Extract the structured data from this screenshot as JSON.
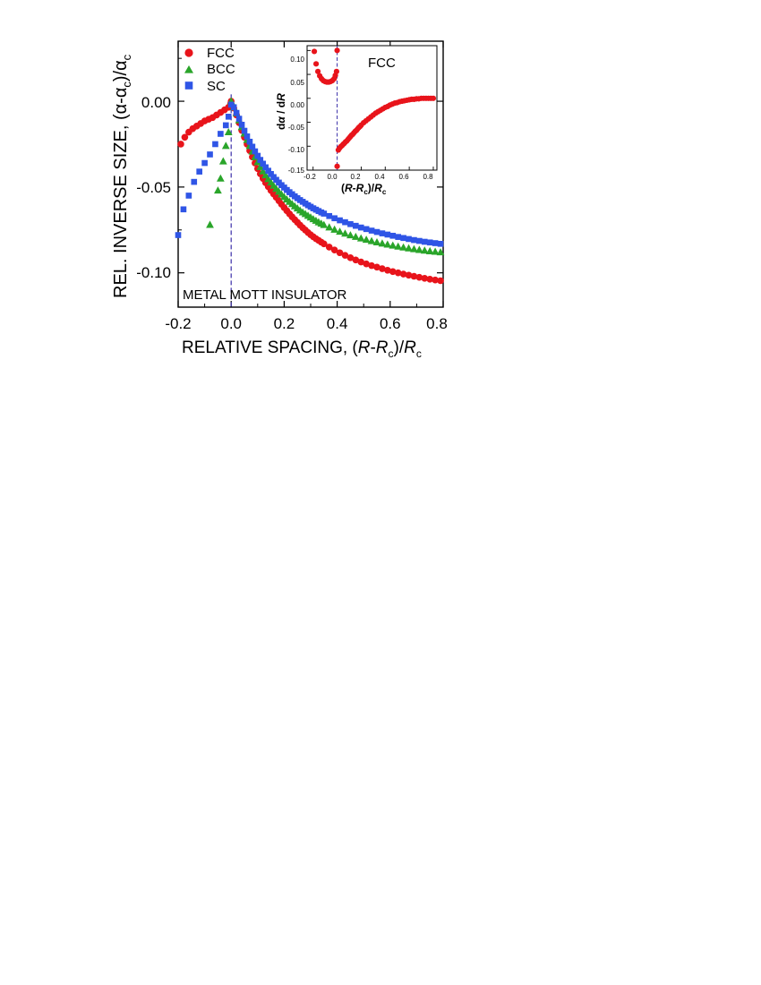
{
  "chart_data": [
    {
      "type": "scatter",
      "xlabel": "RELATIVE SPACING,  (R-R_c)/R_c",
      "ylabel": "REL. INVERSE SIZE,  (α-α_c)/α_c",
      "xlabel_parts": {
        "lead": "RELATIVE SPACING,  (",
        "var1": "R",
        "dash": "-",
        "var2": "R",
        "sub": "c",
        "mid": ")/",
        "var3": "R",
        "sub2": "c"
      },
      "ylabel_parts": {
        "lead": "REL. INVERSE SIZE,  (α-α",
        "sub": "c",
        "mid": ")/α",
        "sub2": "c"
      },
      "xlim": [
        -0.2,
        0.8
      ],
      "ylim": [
        -0.12,
        0.035
      ],
      "xticks": [
        "-0.2",
        "0.0",
        "0.2",
        "0.4",
        "0.6",
        "0.8"
      ],
      "yticks": [
        "0.00",
        "-0.05",
        "-0.10"
      ],
      "vline_x": 0.0,
      "annotation": "METAL  MOTT  INSULATOR",
      "legend": {
        "position": "top-left"
      },
      "colors": {
        "FCC": "#e8141b",
        "BCC": "#2aa52a",
        "SC": "#2f55e6",
        "vline": "#3b2fa8"
      },
      "series": [
        {
          "name": "FCC",
          "marker": "circle",
          "x": [
            -0.19,
            -0.175,
            -0.16,
            -0.145,
            -0.13,
            -0.115,
            -0.1,
            -0.085,
            -0.07,
            -0.055,
            -0.04,
            -0.025,
            -0.01,
            -0.002,
            0.0,
            0.01,
            0.02,
            0.03,
            0.04,
            0.05,
            0.06,
            0.07,
            0.08,
            0.09,
            0.1,
            0.11,
            0.12,
            0.13,
            0.14,
            0.15,
            0.16,
            0.17,
            0.18,
            0.19,
            0.2,
            0.21,
            0.22,
            0.23,
            0.24,
            0.25,
            0.26,
            0.27,
            0.28,
            0.29,
            0.3,
            0.31,
            0.32,
            0.33,
            0.34,
            0.35,
            0.37,
            0.39,
            0.41,
            0.43,
            0.45,
            0.47,
            0.49,
            0.51,
            0.53,
            0.55,
            0.57,
            0.59,
            0.61,
            0.63,
            0.65,
            0.67,
            0.69,
            0.71,
            0.73,
            0.75,
            0.77,
            0.79
          ],
          "y": [
            -0.025,
            -0.021,
            -0.018,
            -0.016,
            -0.0145,
            -0.013,
            -0.0115,
            -0.0105,
            -0.0095,
            -0.008,
            -0.0065,
            -0.005,
            -0.0035,
            -0.0015,
            0.0,
            -0.004,
            -0.008,
            -0.0125,
            -0.017,
            -0.021,
            -0.025,
            -0.0288,
            -0.0325,
            -0.036,
            -0.0393,
            -0.0423,
            -0.045,
            -0.0475,
            -0.0498,
            -0.052,
            -0.054,
            -0.056,
            -0.058,
            -0.06,
            -0.062,
            -0.0638,
            -0.0656,
            -0.0674,
            -0.069,
            -0.0706,
            -0.0722,
            -0.0737,
            -0.0751,
            -0.0765,
            -0.0778,
            -0.079,
            -0.0801,
            -0.0811,
            -0.0821,
            -0.0831,
            -0.085,
            -0.0867,
            -0.0883,
            -0.0898,
            -0.0912,
            -0.0925,
            -0.0937,
            -0.0948,
            -0.0958,
            -0.0967,
            -0.0976,
            -0.0985,
            -0.0993,
            -0.1,
            -0.1007,
            -0.1014,
            -0.102,
            -0.1026,
            -0.1032,
            -0.1037,
            -0.1042,
            -0.1046
          ]
        },
        {
          "name": "BCC",
          "marker": "triangle",
          "x": [
            -0.08,
            -0.05,
            -0.04,
            -0.03,
            -0.02,
            -0.01,
            0.0,
            0.01,
            0.02,
            0.03,
            0.04,
            0.05,
            0.06,
            0.07,
            0.08,
            0.09,
            0.1,
            0.11,
            0.12,
            0.13,
            0.14,
            0.15,
            0.16,
            0.17,
            0.18,
            0.19,
            0.2,
            0.21,
            0.22,
            0.23,
            0.24,
            0.25,
            0.26,
            0.27,
            0.28,
            0.29,
            0.3,
            0.31,
            0.32,
            0.33,
            0.34,
            0.35,
            0.37,
            0.39,
            0.41,
            0.43,
            0.45,
            0.47,
            0.49,
            0.51,
            0.53,
            0.55,
            0.57,
            0.59,
            0.61,
            0.63,
            0.65,
            0.67,
            0.69,
            0.71,
            0.73,
            0.75,
            0.77,
            0.79
          ],
          "y": [
            -0.072,
            -0.052,
            -0.045,
            -0.035,
            -0.026,
            -0.018,
            0.0,
            -0.0035,
            -0.007,
            -0.011,
            -0.015,
            -0.0188,
            -0.0225,
            -0.026,
            -0.0293,
            -0.0325,
            -0.0355,
            -0.0383,
            -0.0408,
            -0.0431,
            -0.0453,
            -0.0473,
            -0.0492,
            -0.051,
            -0.0527,
            -0.0543,
            -0.0558,
            -0.0572,
            -0.0586,
            -0.0599,
            -0.0612,
            -0.0624,
            -0.0636,
            -0.0647,
            -0.0657,
            -0.0667,
            -0.0677,
            -0.0687,
            -0.0696,
            -0.0705,
            -0.0713,
            -0.0721,
            -0.0735,
            -0.0748,
            -0.076,
            -0.0771,
            -0.0781,
            -0.079,
            -0.0799,
            -0.0807,
            -0.0815,
            -0.0822,
            -0.0829,
            -0.0835,
            -0.0841,
            -0.0847,
            -0.0852,
            -0.0857,
            -0.0862,
            -0.0866,
            -0.087,
            -0.0874,
            -0.0877,
            -0.088
          ]
        },
        {
          "name": "SC",
          "marker": "square",
          "x": [
            -0.2,
            -0.18,
            -0.16,
            -0.14,
            -0.12,
            -0.1,
            -0.08,
            -0.06,
            -0.04,
            -0.02,
            -0.01,
            0.0,
            0.01,
            0.02,
            0.03,
            0.04,
            0.05,
            0.06,
            0.07,
            0.08,
            0.09,
            0.1,
            0.11,
            0.12,
            0.13,
            0.14,
            0.15,
            0.16,
            0.17,
            0.18,
            0.19,
            0.2,
            0.21,
            0.22,
            0.23,
            0.24,
            0.25,
            0.26,
            0.27,
            0.28,
            0.29,
            0.3,
            0.31,
            0.32,
            0.33,
            0.34,
            0.35,
            0.37,
            0.39,
            0.41,
            0.43,
            0.45,
            0.47,
            0.49,
            0.51,
            0.53,
            0.55,
            0.57,
            0.59,
            0.61,
            0.63,
            0.65,
            0.67,
            0.69,
            0.71,
            0.73,
            0.75,
            0.77,
            0.79
          ],
          "y": [
            -0.078,
            -0.063,
            -0.055,
            -0.047,
            -0.041,
            -0.036,
            -0.031,
            -0.025,
            -0.019,
            -0.014,
            -0.009,
            -0.002,
            -0.0035,
            -0.0068,
            -0.0102,
            -0.0137,
            -0.0172,
            -0.0205,
            -0.0236,
            -0.0265,
            -0.0292,
            -0.0318,
            -0.0342,
            -0.0364,
            -0.0385,
            -0.0405,
            -0.0424,
            -0.0442,
            -0.0458,
            -0.0474,
            -0.0489,
            -0.0503,
            -0.0517,
            -0.053,
            -0.0542,
            -0.0554,
            -0.0565,
            -0.0576,
            -0.0586,
            -0.0596,
            -0.0606,
            -0.0615,
            -0.0624,
            -0.0632,
            -0.064,
            -0.0648,
            -0.0655,
            -0.0669,
            -0.0682,
            -0.0694,
            -0.0705,
            -0.0716,
            -0.0726,
            -0.0736,
            -0.0745,
            -0.0754,
            -0.0762,
            -0.077,
            -0.0777,
            -0.0784,
            -0.0791,
            -0.0797,
            -0.0803,
            -0.0809,
            -0.0814,
            -0.0819,
            -0.0823,
            -0.0827,
            -0.0831
          ]
        }
      ]
    },
    {
      "type": "scatter",
      "title": "FCC",
      "xlabel": "(R-R_c)/R_c",
      "ylabel": "dα / dR",
      "xlabel_parts": {
        "lead": "(",
        "var1": "R",
        "dash": "-",
        "var2": "R",
        "sub": "c",
        "mid": ")/",
        "var3": "R",
        "sub2": "c"
      },
      "ylabel_parts": {
        "lead": "d",
        "alpha": "α",
        "mid": " / d",
        "var": "R"
      },
      "xlim": [
        -0.25,
        0.83
      ],
      "ylim": [
        -0.15,
        0.11
      ],
      "xticks": [
        "-0.2",
        "0.0",
        "0.2",
        "0.4",
        "0.6",
        "0.8"
      ],
      "yticks": [
        "0.10",
        "0.05",
        "0.00",
        "-0.05",
        "-0.10",
        "-0.15"
      ],
      "vline_x": 0.0,
      "colors": {
        "points": "#e8141b",
        "vline": "#3b2fa8"
      },
      "series": [
        {
          "name": "FCC",
          "marker": "circle",
          "x": [
            -0.19,
            -0.175,
            -0.16,
            -0.145,
            -0.13,
            -0.115,
            -0.1,
            -0.085,
            -0.07,
            -0.055,
            -0.04,
            -0.025,
            -0.015,
            -0.005,
            0.0,
            0.0,
            0.01,
            0.02,
            0.03,
            0.04,
            0.05,
            0.06,
            0.07,
            0.08,
            0.09,
            0.1,
            0.11,
            0.12,
            0.13,
            0.14,
            0.15,
            0.16,
            0.17,
            0.18,
            0.19,
            0.2,
            0.22,
            0.24,
            0.26,
            0.28,
            0.3,
            0.32,
            0.34,
            0.36,
            0.38,
            0.4,
            0.42,
            0.44,
            0.46,
            0.48,
            0.5,
            0.52,
            0.54,
            0.56,
            0.58,
            0.6,
            0.62,
            0.64,
            0.66,
            0.68,
            0.7,
            0.72,
            0.74,
            0.76,
            0.78,
            0.8
          ],
          "y": [
            0.098,
            0.072,
            0.056,
            0.047,
            0.041,
            0.037,
            0.035,
            0.034,
            0.034,
            0.035,
            0.037,
            0.041,
            0.048,
            0.056,
            0.1,
            -0.142,
            -0.108,
            -0.104,
            -0.101,
            -0.099,
            -0.096,
            -0.094,
            -0.091,
            -0.089,
            -0.086,
            -0.083,
            -0.08,
            -0.077,
            -0.075,
            -0.072,
            -0.069,
            -0.067,
            -0.064,
            -0.061,
            -0.059,
            -0.056,
            -0.051,
            -0.047,
            -0.043,
            -0.039,
            -0.035,
            -0.031,
            -0.028,
            -0.025,
            -0.022,
            -0.019,
            -0.017,
            -0.014,
            -0.012,
            -0.01,
            -0.009,
            -0.007,
            -0.006,
            -0.005,
            -0.004,
            -0.003,
            -0.002,
            -0.002,
            -0.001,
            -0.001,
            0.0,
            0.0,
            0.0,
            0.0,
            0.0,
            0.0
          ]
        }
      ]
    }
  ]
}
